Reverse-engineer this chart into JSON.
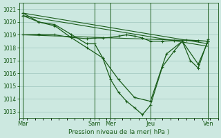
{
  "bg_color": "#cce8e0",
  "grid_color": "#a8ccc4",
  "line_color": "#1a5c1a",
  "marker_color": "#1a5c1a",
  "xlabel": "Pression niveau de la mer( hPa )",
  "ylim": [
    1012.5,
    1021.5
  ],
  "yticks": [
    1013,
    1014,
    1015,
    1016,
    1017,
    1018,
    1019,
    1020,
    1021
  ],
  "xlim": [
    0,
    100
  ],
  "xtick_labels": [
    "Mar",
    "Sam",
    "Mer",
    "Jeu",
    "Ven"
  ],
  "xtick_pos": [
    2,
    38,
    46,
    66,
    95
  ],
  "vlines": [
    2,
    38,
    46,
    66,
    95
  ],
  "line1_x": [
    2,
    10,
    18,
    26,
    34,
    38,
    42,
    46,
    50,
    54,
    58,
    62,
    66,
    72,
    78,
    84,
    90,
    95
  ],
  "line1_y": [
    1019.0,
    1019.05,
    1019.0,
    1018.8,
    1018.7,
    1018.75,
    1018.75,
    1018.8,
    1018.9,
    1019.0,
    1018.9,
    1018.75,
    1018.5,
    1018.5,
    1018.55,
    1018.6,
    1018.55,
    1018.5
  ],
  "line2_x": [
    2,
    10,
    18,
    26,
    34,
    42,
    50,
    58,
    66,
    74,
    82,
    90,
    95
  ],
  "line2_y": [
    1020.5,
    1020.0,
    1019.7,
    1018.8,
    1018.0,
    1017.2,
    1015.5,
    1014.1,
    1013.8,
    1017.5,
    1018.5,
    1016.7,
    1018.5
  ],
  "line3_x": [
    2,
    10,
    18,
    26,
    34,
    38,
    42,
    46,
    50,
    54,
    58,
    62,
    66,
    72,
    78,
    82,
    86,
    90,
    95
  ],
  "line3_y": [
    1020.7,
    1020.0,
    1019.8,
    1019.05,
    1018.3,
    1018.3,
    1017.2,
    1015.5,
    1014.5,
    1013.8,
    1013.3,
    1012.75,
    1013.5,
    1016.5,
    1017.75,
    1018.5,
    1017.0,
    1016.4,
    1018.65
  ],
  "trend1_x": [
    2,
    95
  ],
  "trend1_y": [
    1020.5,
    1018.1
  ],
  "trend2_x": [
    2,
    95
  ],
  "trend2_y": [
    1020.7,
    1018.3
  ],
  "trend3_x": [
    2,
    95
  ],
  "trend3_y": [
    1019.0,
    1018.5
  ]
}
